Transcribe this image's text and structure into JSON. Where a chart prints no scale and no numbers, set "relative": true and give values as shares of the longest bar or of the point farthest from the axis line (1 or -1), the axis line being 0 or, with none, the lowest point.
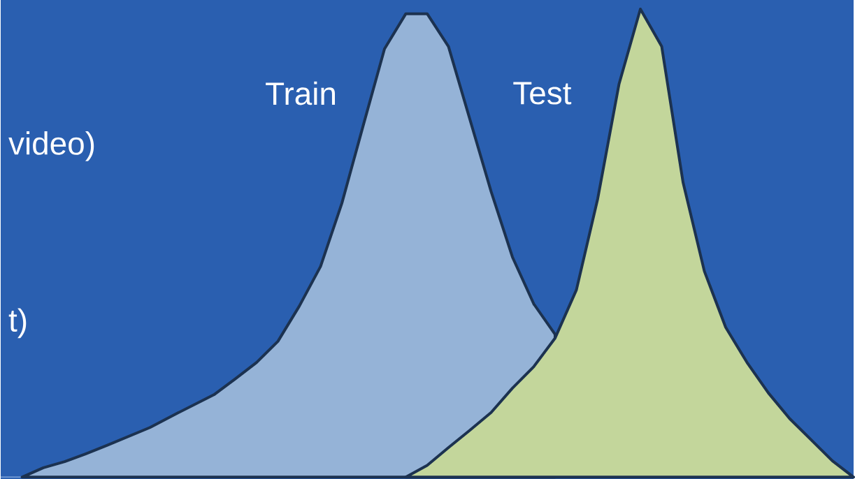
{
  "chart_data": {
    "type": "area",
    "relative": true,
    "annotations": [
      "video)",
      "t)"
    ],
    "categories": [
      null,
      null,
      null,
      null,
      null,
      null,
      null,
      null,
      null,
      null,
      null,
      null,
      null,
      null,
      null,
      null,
      null,
      null,
      null,
      null,
      null,
      null,
      null,
      null,
      null,
      null,
      null,
      null,
      null,
      null,
      null,
      null,
      null,
      null,
      null,
      null,
      null,
      null,
      null,
      null,
      null
    ],
    "series": [
      {
        "name": "Train",
        "color": "#95b3d7",
        "values": [
          null,
          0,
          0.02,
          0.033,
          0.05,
          0.068,
          0.087,
          0.106,
          0.13,
          0.153,
          0.176,
          0.21,
          0.245,
          0.29,
          0.365,
          0.45,
          0.585,
          0.751,
          0.915,
          0.99,
          0.99,
          0.92,
          0.765,
          0.61,
          0.47,
          0.37,
          0.305,
          null,
          null,
          null,
          null,
          null,
          null,
          null,
          null,
          null,
          null,
          null,
          null,
          null,
          null
        ]
      },
      {
        "name": "Test",
        "color": "#c3d69b",
        "values": [
          null,
          null,
          null,
          null,
          null,
          null,
          null,
          null,
          null,
          null,
          null,
          null,
          null,
          null,
          null,
          null,
          null,
          null,
          null,
          0,
          0.025,
          0.063,
          0.1,
          0.138,
          0.19,
          0.236,
          0.297,
          0.4,
          0.595,
          0.84,
          1.0,
          0.92,
          0.63,
          0.44,
          0.32,
          0.245,
          0.18,
          0.125,
          0.08,
          0.035,
          0
        ]
      }
    ]
  }
}
